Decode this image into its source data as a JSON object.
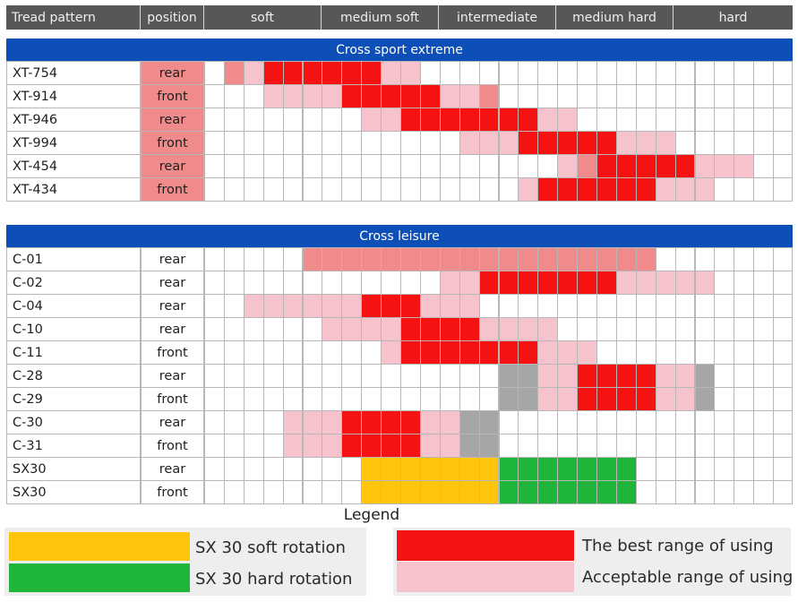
{
  "header": {
    "tread_pattern": "Tread pattern",
    "position": "position",
    "ranges": [
      "soft",
      "medium soft",
      "intermediate",
      "medium hard",
      "hard"
    ]
  },
  "chart_data": {
    "type": "table",
    "columns": 30,
    "categories": [
      "soft",
      "medium soft",
      "intermediate",
      "medium hard",
      "hard"
    ],
    "colors": {
      "best": "#f51212",
      "acceptable": "#f6c2cb",
      "pink": "#ef8b8b",
      "grey": "#a6a6a6",
      "sx_soft": "#ffc50a",
      "sx_hard": "#1fb53a"
    },
    "sections": [
      {
        "title": "Cross sport extreme",
        "rows": [
          {
            "name": "XT-754",
            "position": "rear",
            "cells": [
              [
                "pink",
                1,
                1
              ],
              [
                "acceptable",
                2,
                2
              ],
              [
                "best",
                3,
                8
              ],
              [
                "acceptable",
                9,
                10
              ]
            ]
          },
          {
            "name": "XT-914",
            "position": "front",
            "cells": [
              [
                "acceptable",
                3,
                6
              ],
              [
                "best",
                7,
                11
              ],
              [
                "acceptable",
                12,
                13
              ],
              [
                "pink",
                14,
                14
              ]
            ]
          },
          {
            "name": "XT-946",
            "position": "rear",
            "cells": [
              [
                "acceptable",
                8,
                9
              ],
              [
                "best",
                10,
                16
              ],
              [
                "acceptable",
                17,
                18
              ]
            ]
          },
          {
            "name": "XT-994",
            "position": "front",
            "cells": [
              [
                "acceptable",
                13,
                15
              ],
              [
                "best",
                16,
                20
              ],
              [
                "acceptable",
                21,
                23
              ]
            ]
          },
          {
            "name": "XT-454",
            "position": "rear",
            "cells": [
              [
                "acceptable",
                18,
                18
              ],
              [
                "pink",
                19,
                19
              ],
              [
                "best",
                20,
                24
              ],
              [
                "acceptable",
                25,
                27
              ]
            ]
          },
          {
            "name": "XT-434",
            "position": "front",
            "cells": [
              [
                "acceptable",
                16,
                16
              ],
              [
                "best",
                17,
                22
              ],
              [
                "acceptable",
                23,
                25
              ]
            ]
          }
        ]
      },
      {
        "title": "Cross leisure",
        "rows": [
          {
            "name": "C-01",
            "position": "rear",
            "cells": [
              [
                "pink",
                5,
                22
              ]
            ]
          },
          {
            "name": "C-02",
            "position": "rear",
            "cells": [
              [
                "acceptable",
                12,
                13
              ],
              [
                "best",
                14,
                20
              ],
              [
                "acceptable",
                21,
                25
              ]
            ]
          },
          {
            "name": "C-04",
            "position": "rear",
            "cells": [
              [
                "acceptable",
                2,
                7
              ],
              [
                "best",
                8,
                10
              ],
              [
                "acceptable",
                11,
                13
              ]
            ]
          },
          {
            "name": "C-10",
            "position": "rear",
            "cells": [
              [
                "acceptable",
                6,
                9
              ],
              [
                "best",
                10,
                13
              ],
              [
                "acceptable",
                14,
                17
              ]
            ]
          },
          {
            "name": "C-11",
            "position": "front",
            "cells": [
              [
                "acceptable",
                9,
                9
              ],
              [
                "best",
                10,
                16
              ],
              [
                "acceptable",
                17,
                19
              ]
            ]
          },
          {
            "name": "C-28",
            "position": "rear",
            "cells": [
              [
                "grey",
                15,
                16
              ],
              [
                "acceptable",
                17,
                18
              ],
              [
                "best",
                19,
                22
              ],
              [
                "acceptable",
                23,
                24
              ],
              [
                "grey",
                25,
                25
              ]
            ]
          },
          {
            "name": "C-29",
            "position": "front",
            "cells": [
              [
                "grey",
                15,
                16
              ],
              [
                "acceptable",
                17,
                18
              ],
              [
                "best",
                19,
                22
              ],
              [
                "acceptable",
                23,
                24
              ],
              [
                "grey",
                25,
                25
              ]
            ]
          },
          {
            "name": "C-30",
            "position": "rear",
            "cells": [
              [
                "acceptable",
                4,
                6
              ],
              [
                "best",
                7,
                10
              ],
              [
                "acceptable",
                11,
                12
              ],
              [
                "grey",
                13,
                14
              ]
            ]
          },
          {
            "name": "C-31",
            "position": "front",
            "cells": [
              [
                "acceptable",
                4,
                6
              ],
              [
                "best",
                7,
                10
              ],
              [
                "acceptable",
                11,
                12
              ],
              [
                "grey",
                13,
                14
              ]
            ]
          },
          {
            "name": "SX30",
            "position": "rear",
            "cells": [
              [
                "sx_soft",
                8,
                14
              ],
              [
                "sx_hard",
                15,
                21
              ]
            ]
          },
          {
            "name": "SX30",
            "position": "front",
            "cells": [
              [
                "sx_soft",
                8,
                14
              ],
              [
                "sx_hard",
                15,
                21
              ]
            ]
          }
        ]
      }
    ]
  },
  "legend": {
    "title": "Legend",
    "items": [
      {
        "label": "SX 30 soft rotation",
        "color": "#ffc50a"
      },
      {
        "label": "SX 30 hard rotation",
        "color": "#1fb53a"
      },
      {
        "label": "The best range of using",
        "color": "#f51212"
      },
      {
        "label": "Acceptable range of using",
        "color": "#f6c2cb"
      }
    ]
  }
}
